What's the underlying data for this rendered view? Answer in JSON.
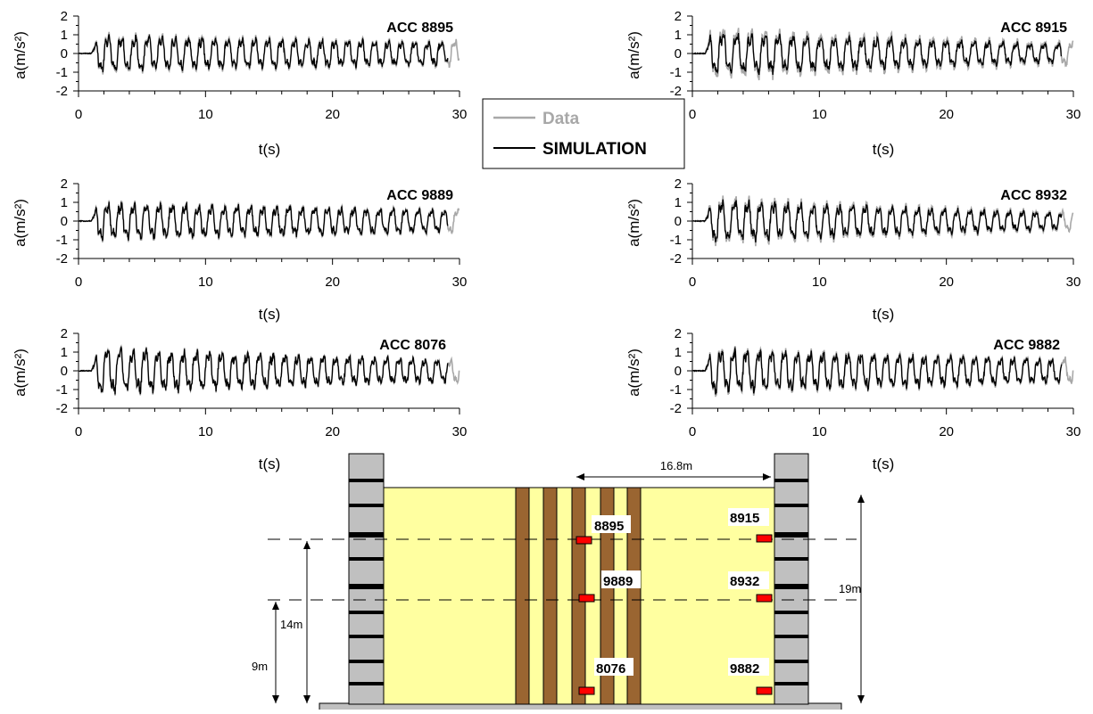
{
  "legend": {
    "data_label": "Data",
    "simulation_label": "SIMULATION",
    "data_color": "#a8a8a8",
    "simulation_color": "#000000"
  },
  "chart_data": [
    {
      "type": "line",
      "title": "ACC 8895",
      "xlabel": "t(s)",
      "ylabel": "a(m/s²)",
      "xlim": [
        0,
        30
      ],
      "ylim": [
        -2,
        2
      ],
      "xticks": [
        "0",
        "10",
        "20",
        "30"
      ],
      "yticks": [
        "2",
        "1",
        "0",
        "-1",
        "-2"
      ],
      "signal": {
        "onset": 1.0,
        "peak": 1.1,
        "period": 1.05,
        "decay": 0.35,
        "end_sim": 29.1,
        "end_data": 30.0,
        "data_scale": 1.12
      },
      "series": [
        {
          "name": "Data"
        },
        {
          "name": "SIMULATION"
        }
      ]
    },
    {
      "type": "line",
      "title": "ACC 8915",
      "xlabel": "t(s)",
      "ylabel": "a(m/s²)",
      "xlim": [
        0,
        30
      ],
      "ylim": [
        -2,
        2
      ],
      "xticks": [
        "0",
        "10",
        "20",
        "30"
      ],
      "yticks": [
        "2",
        "1",
        "0",
        "-1",
        "-2"
      ],
      "signal": {
        "onset": 1.0,
        "peak": 1.3,
        "period": 1.1,
        "decay": 0.55,
        "end_sim": 29.1,
        "end_data": 30.0,
        "data_scale": 1.25
      },
      "series": [
        {
          "name": "Data"
        },
        {
          "name": "SIMULATION"
        }
      ]
    },
    {
      "type": "line",
      "title": "ACC 9889",
      "xlabel": "t(s)",
      "ylabel": "a(m/s²)",
      "xlim": [
        0,
        30
      ],
      "ylim": [
        -2,
        2
      ],
      "xticks": [
        "0",
        "10",
        "20",
        "30"
      ],
      "yticks": [
        "2",
        "1",
        "0",
        "-1",
        "-2"
      ],
      "signal": {
        "onset": 1.0,
        "peak": 1.15,
        "period": 1.02,
        "decay": 0.4,
        "end_sim": 29.1,
        "end_data": 30.0,
        "data_scale": 1.08
      },
      "series": [
        {
          "name": "Data"
        },
        {
          "name": "SIMULATION"
        }
      ]
    },
    {
      "type": "line",
      "title": "ACC 8932",
      "xlabel": "t(s)",
      "ylabel": "a(m/s²)",
      "xlim": [
        0,
        30
      ],
      "ylim": [
        -2,
        2
      ],
      "xticks": [
        "0",
        "10",
        "20",
        "30"
      ],
      "yticks": [
        "2",
        "1",
        "0",
        "-1",
        "-2"
      ],
      "signal": {
        "onset": 1.0,
        "peak": 1.3,
        "period": 1.03,
        "decay": 0.6,
        "end_sim": 29.1,
        "end_data": 30.0,
        "data_scale": 1.18
      },
      "series": [
        {
          "name": "Data"
        },
        {
          "name": "SIMULATION"
        }
      ]
    },
    {
      "type": "line",
      "title": "ACC 8076",
      "xlabel": "t(s)",
      "ylabel": "a(m/s²)",
      "xlim": [
        0,
        30
      ],
      "ylim": [
        -2,
        2
      ],
      "xticks": [
        "0",
        "10",
        "20",
        "30"
      ],
      "yticks": [
        "2",
        "1",
        "0",
        "-1",
        "-2"
      ],
      "signal": {
        "onset": 1.0,
        "peak": 1.4,
        "period": 1.0,
        "decay": 0.5,
        "end_sim": 29.1,
        "end_data": 30.0,
        "data_scale": 1.05
      },
      "series": [
        {
          "name": "Data"
        },
        {
          "name": "SIMULATION"
        }
      ]
    },
    {
      "type": "line",
      "title": "ACC 9882",
      "xlabel": "t(s)",
      "ylabel": "a(m/s²)",
      "xlim": [
        0,
        30
      ],
      "ylim": [
        -2,
        2
      ],
      "xticks": [
        "0",
        "10",
        "20",
        "30"
      ],
      "yticks": [
        "2",
        "1",
        "0",
        "-1",
        "-2"
      ],
      "signal": {
        "onset": 1.0,
        "peak": 1.35,
        "period": 1.0,
        "decay": 0.45,
        "end_sim": 29.1,
        "end_data": 30.0,
        "data_scale": 1.1
      },
      "series": [
        {
          "name": "Data"
        },
        {
          "name": "SIMULATION"
        }
      ]
    }
  ],
  "diagram": {
    "dim_width": "16.8m",
    "dim_height": "19m",
    "dim_14": "14m",
    "dim_9": "9m",
    "sensors": [
      "8895",
      "8915",
      "9889",
      "8932",
      "8076",
      "9882"
    ],
    "colors": {
      "backfill": "#ffffa0",
      "wall": "#c0c0c0",
      "pile": "#9a6531",
      "sensor": "#ff0000",
      "base": "#c0c0c0"
    }
  }
}
